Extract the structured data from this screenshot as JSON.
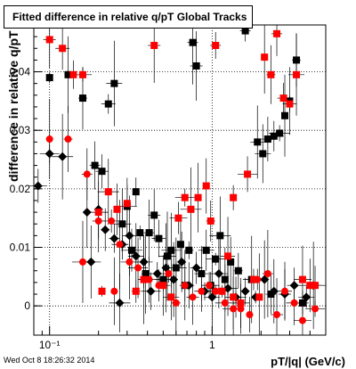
{
  "title": "Fitted difference in relative q/pT  Global Tracks",
  "timestamp": "Wed Oct  8 18:26:32 2014",
  "chart_data": {
    "type": "scatter",
    "title": "Fitted difference in relative q/pT  Global Tracks",
    "xlabel": "pT/|q| (GeV/c)",
    "ylabel": "difference in relative q/pT",
    "xscale": "log",
    "xlim": [
      0.08,
      5.0
    ],
    "ylim": [
      -0.005,
      0.048
    ],
    "xticks": [
      {
        "v": 0.1,
        "label": "10⁻¹"
      },
      {
        "v": 1,
        "label": "1"
      }
    ],
    "yticks": [
      0,
      0.01,
      0.02,
      0.03,
      0.04
    ],
    "grid": true,
    "series": [
      {
        "marker": "square",
        "color": "#000000",
        "points": [
          [
            0.1,
            0.039
          ],
          [
            0.13,
            0.0395
          ],
          [
            0.16,
            0.0355
          ],
          [
            0.19,
            0.024
          ],
          [
            0.21,
            0.023
          ],
          [
            0.23,
            0.0345
          ],
          [
            0.25,
            0.038
          ],
          [
            0.28,
            0.014
          ],
          [
            0.3,
            0.017
          ],
          [
            0.32,
            0.0095
          ],
          [
            0.34,
            0.0195
          ],
          [
            0.36,
            0.0125
          ],
          [
            0.39,
            0.0055
          ],
          [
            0.41,
            0.0125
          ],
          [
            0.44,
            0.0155
          ],
          [
            0.47,
            0.0115
          ],
          [
            0.5,
            0.0045
          ],
          [
            0.53,
            0.0085
          ],
          [
            0.56,
            0.0095
          ],
          [
            0.6,
            0.0065
          ],
          [
            0.64,
            0.0105
          ],
          [
            0.68,
            0.0035
          ],
          [
            0.72,
            0.0095
          ],
          [
            0.76,
            0.045
          ],
          [
            0.8,
            0.041
          ],
          [
            0.86,
            0.0055
          ],
          [
            0.92,
            0.0095
          ],
          [
            0.98,
            0.0035
          ],
          [
            1.05,
            0.008
          ],
          [
            1.12,
            0.012
          ],
          [
            1.2,
            0.0045
          ],
          [
            1.3,
            0.0075
          ],
          [
            1.45,
            0.006
          ],
          [
            1.6,
            0.047
          ],
          [
            1.75,
            0.0045
          ],
          [
            1.9,
            0.028
          ],
          [
            2.05,
            0.026
          ],
          [
            2.2,
            0.0285
          ],
          [
            2.4,
            0.029
          ],
          [
            2.6,
            0.0295
          ],
          [
            2.8,
            0.0325
          ],
          [
            3.0,
            0.035
          ],
          [
            3.3,
            0.042
          ],
          [
            2.3,
            0.002
          ],
          [
            3.6,
            0.0005
          ]
        ]
      },
      {
        "marker": "diamond",
        "color": "#000000",
        "points": [
          [
            0.085,
            0.0205
          ],
          [
            0.1,
            0.026
          ],
          [
            0.12,
            0.0255
          ],
          [
            0.17,
            0.016
          ],
          [
            0.2,
            0.0165
          ],
          [
            0.22,
            0.013
          ],
          [
            0.25,
            0.0115
          ],
          [
            0.28,
            0.0105
          ],
          [
            0.31,
            0.012
          ],
          [
            0.34,
            0.0085
          ],
          [
            0.38,
            0.0075
          ],
          [
            0.42,
            0.0025
          ],
          [
            0.46,
            0.0055
          ],
          [
            0.52,
            0.0065
          ],
          [
            0.58,
            0.0045
          ],
          [
            0.65,
            0.0075
          ],
          [
            0.72,
            0.0035
          ],
          [
            0.8,
            0.0065
          ],
          [
            0.9,
            0.0025
          ],
          [
            1.0,
            0.0015
          ],
          [
            1.1,
            0.0055
          ],
          [
            1.25,
            0.003
          ],
          [
            1.4,
            0.0015
          ],
          [
            1.6,
            0.0025
          ],
          [
            1.85,
            0.0015
          ],
          [
            2.1,
            0.0045
          ],
          [
            2.4,
            0.0025
          ],
          [
            2.8,
            0.002
          ],
          [
            3.2,
            0.0035
          ],
          [
            3.8,
            0.0015
          ],
          [
            4.2,
            0.0035
          ],
          [
            0.18,
            0.0075
          ],
          [
            0.27,
            0.0005
          ]
        ]
      },
      {
        "marker": "square",
        "color": "#ff0000",
        "points": [
          [
            0.1,
            0.0455
          ],
          [
            0.12,
            0.044
          ],
          [
            0.14,
            0.0395
          ],
          [
            0.16,
            0.0395
          ],
          [
            0.2,
            0.016
          ],
          [
            0.23,
            0.0195
          ],
          [
            0.26,
            0.0165
          ],
          [
            0.3,
            0.0175
          ],
          [
            0.34,
            0.0025
          ],
          [
            0.38,
            0.0045
          ],
          [
            0.44,
            0.0445
          ],
          [
            0.5,
            0.0035
          ],
          [
            0.56,
            0.0015
          ],
          [
            0.62,
            0.015
          ],
          [
            0.68,
            0.0185
          ],
          [
            0.74,
            0.0165
          ],
          [
            0.82,
            0.0185
          ],
          [
            0.92,
            0.0205
          ],
          [
            0.98,
            0.0145
          ],
          [
            1.05,
            0.0445
          ],
          [
            1.15,
            0.0025
          ],
          [
            1.25,
            0.0085
          ],
          [
            1.35,
            0.0015
          ],
          [
            1.5,
            0.0005
          ],
          [
            1.65,
            0.0225
          ],
          [
            1.8,
            0.0045
          ],
          [
            1.95,
            0.0015
          ],
          [
            2.1,
            0.0425
          ],
          [
            2.3,
            0.0395
          ],
          [
            2.5,
            0.0465
          ],
          [
            2.75,
            0.0355
          ],
          [
            3.0,
            0.0345
          ],
          [
            3.3,
            0.0395
          ],
          [
            3.6,
            0.0045
          ],
          [
            4.0,
            0.0035
          ],
          [
            4.3,
            0.0035
          ],
          [
            1.35,
            0.0185
          ],
          [
            0.21,
            0.0025
          ]
        ]
      },
      {
        "marker": "circle",
        "color": "#ff0000",
        "points": [
          [
            0.1,
            0.0285
          ],
          [
            0.13,
            0.0285
          ],
          [
            0.17,
            0.0225
          ],
          [
            0.2,
            0.0145
          ],
          [
            0.24,
            0.0145
          ],
          [
            0.27,
            0.0105
          ],
          [
            0.31,
            0.0075
          ],
          [
            0.35,
            0.0065
          ],
          [
            0.41,
            0.0045
          ],
          [
            0.47,
            0.0035
          ],
          [
            0.54,
            0.0055
          ],
          [
            0.6,
            0.0005
          ],
          [
            0.68,
            0.0035
          ],
          [
            0.76,
            0.0015
          ],
          [
            0.86,
            0.0025
          ],
          [
            0.96,
            0.0035
          ],
          [
            1.05,
            0.0025
          ],
          [
            1.2,
            0.0005
          ],
          [
            1.35,
            -0.0005
          ],
          [
            1.5,
            -0.0005
          ],
          [
            1.7,
            -0.0015
          ],
          [
            1.9,
            0.0045
          ],
          [
            2.2,
            0.0055
          ],
          [
            2.5,
            -0.0015
          ],
          [
            2.8,
            0.0025
          ],
          [
            3.2,
            0.0005
          ],
          [
            3.6,
            -0.0025
          ],
          [
            4.3,
            -0.0005
          ],
          [
            0.16,
            0.0075
          ],
          [
            0.25,
            0.0025
          ]
        ]
      }
    ]
  }
}
